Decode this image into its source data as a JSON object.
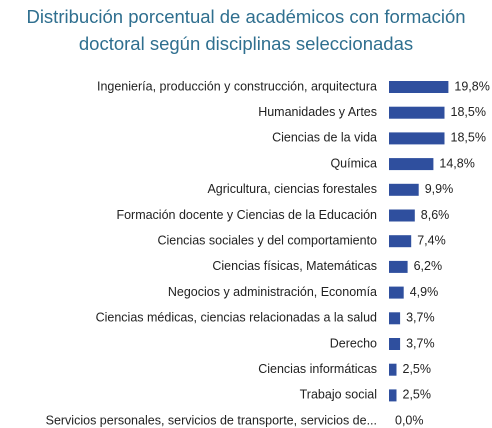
{
  "chart_data": {
    "type": "barh",
    "title": [
      "Distribución porcentual de académicos con formación",
      "doctoral según disciplinas seleccionadas"
    ],
    "categories": [
      "Ingeniería, producción y construcción, arquitectura",
      "Humanidades y Artes",
      "Ciencias de la vida",
      "Química",
      "Agricultura, ciencias forestales",
      "Formación docente y Ciencias de la Educación",
      "Ciencias sociales y del comportamiento",
      "Ciencias físicas, Matemáticas",
      "Negocios y administración, Economía",
      "Ciencias médicas, ciencias relacionadas a la salud",
      "Derecho",
      "Ciencias informáticas",
      "Trabajo social",
      "Servicios personales, servicios de transporte, servicios de..."
    ],
    "values": [
      19.8,
      18.5,
      18.5,
      14.8,
      9.9,
      8.6,
      7.4,
      6.2,
      4.9,
      3.7,
      3.7,
      2.5,
      2.5,
      0.0
    ],
    "value_labels": [
      "19,8%",
      "18,5%",
      "18,5%",
      "14,8%",
      "9,9%",
      "8,6%",
      "7,4%",
      "6,2%",
      "4,9%",
      "3,7%",
      "3,7%",
      "2,5%",
      "2,5%",
      "0,0%"
    ],
    "color": "#2f4f9e"
  }
}
